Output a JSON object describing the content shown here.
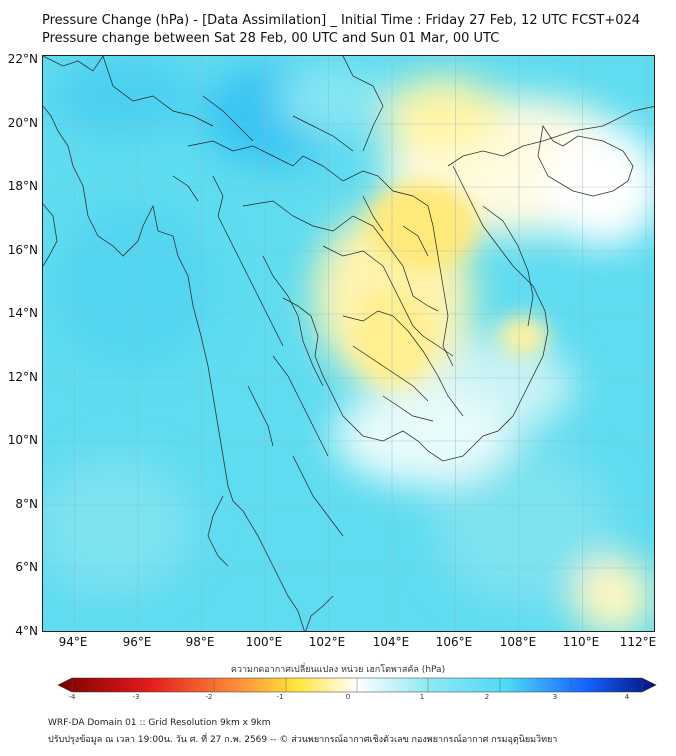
{
  "title": {
    "line1": "Pressure Change (hPa) - [Data Assimilation] _ Initial Time : Friday 27 Feb, 12 UTC FCST+024",
    "line2": "Pressure change between Sat 28 Feb, 00 UTC and Sun 01 Mar, 00 UTC"
  },
  "axes": {
    "lat_labels": [
      "22°N",
      "20°N",
      "18°N",
      "16°N",
      "14°N",
      "12°N",
      "10°N",
      "8°N",
      "6°N",
      "4°N"
    ],
    "lon_labels": [
      "94°E",
      "96°E",
      "98°E",
      "100°E",
      "102°E",
      "104°E",
      "106°E",
      "108°E",
      "110°E",
      "112°E"
    ]
  },
  "colorbar": {
    "title": "ความกดอากาศเปลี่ยนแปลง หน่วย เฮกโตพาสคัล (hPa)",
    "ticks": [
      "-4",
      "-3",
      "-2",
      "-1",
      "0",
      "1",
      "2",
      "3",
      "4"
    ],
    "colors": {
      "neg_dark": "#7a0000",
      "neg_red": "#e31a1c",
      "neg_orange": "#fd8d3c",
      "neg_yellow": "#ffe63c",
      "zero": "#ffffff",
      "pos_cyan": "#4fd9f5",
      "pos_blue": "#1565ff",
      "pos_dark": "#07107a"
    }
  },
  "footer": {
    "line1": "WRF-DA Domain 01 :: Grid Resolution 9km x 9km",
    "line2": "ปรับปรุงข้อมูล ณ เวลา 19:00น. วัน ศ. ที่ 27 ก.พ. 2569 -- © ส่วนพยากรณ์อากาศเชิงตัวเลข กองพยากรณ์อากาศ กรมอุตุนิยมวิทยา"
  }
}
